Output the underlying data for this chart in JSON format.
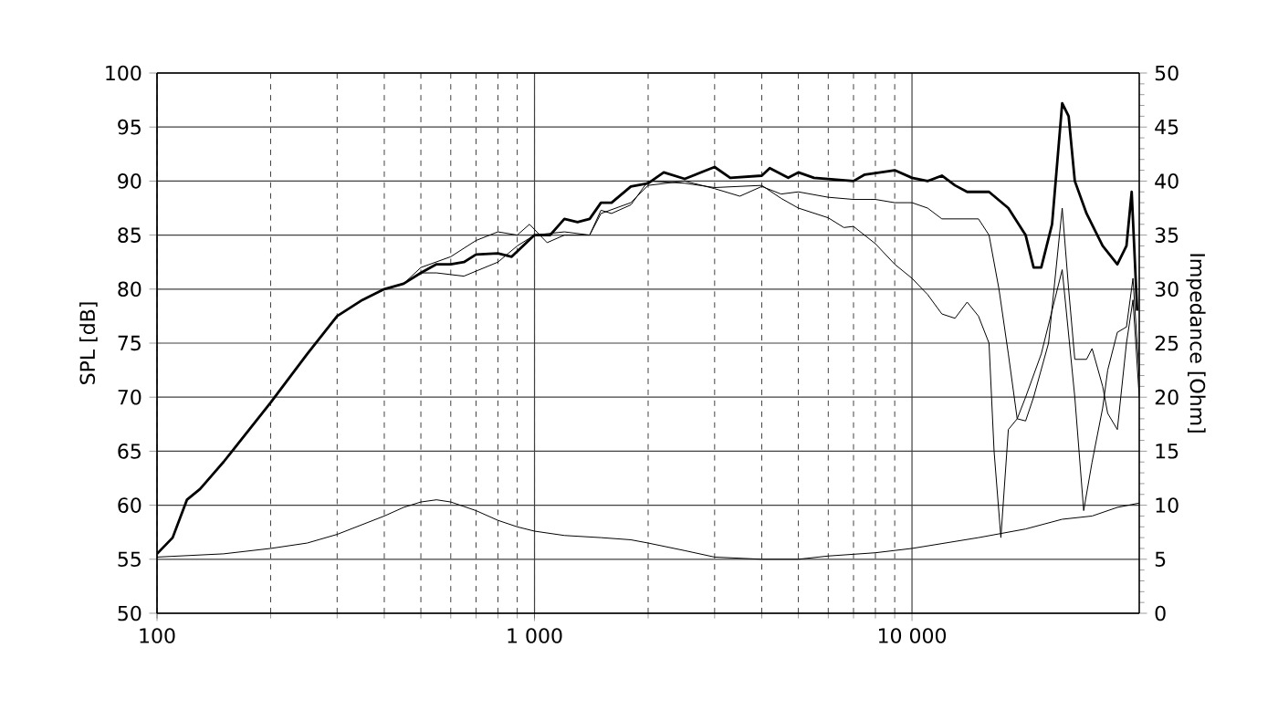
{
  "chart_data": {
    "type": "line",
    "ylabel": "SPL [dB]",
    "y2label": "Impedance [Ohm]",
    "log": "x",
    "grid": true,
    "marker": "none",
    "line_style": "solid",
    "xlim": [
      100,
      40000
    ],
    "xticks": [
      100,
      {
        "value": 1000,
        "label": "1 000"
      },
      {
        "value": 10000,
        "label": "10 000"
      }
    ],
    "ylim": [
      50,
      100
    ],
    "yticks": [
      50,
      55,
      60,
      65,
      70,
      75,
      80,
      85,
      90,
      95,
      100
    ],
    "y2lim": [
      0,
      50
    ],
    "y2ticks": [
      0,
      5,
      10,
      15,
      20,
      25,
      30,
      35,
      40,
      45,
      50
    ],
    "series": [
      {
        "color": "#000000",
        "x": [
          100,
          110,
          120,
          130,
          150,
          200,
          250,
          300,
          350,
          400,
          450,
          500,
          550,
          600,
          650,
          700,
          800,
          870,
          1000,
          1100,
          1200,
          1300,
          1400,
          1500,
          1600,
          1800,
          2000,
          2200,
          2500,
          3000,
          3300,
          4000,
          4200,
          4700,
          5000,
          5500,
          6000,
          7000,
          7500,
          9000,
          10000,
          11000,
          12000,
          13000,
          14000,
          16000,
          18000,
          20000,
          21000,
          22000,
          23500,
          25000,
          26000,
          27000,
          29000,
          32000,
          35000,
          37000,
          38200,
          39500
        ],
        "values": [
          55.5,
          57,
          60.5,
          61.5,
          64,
          69.5,
          74,
          77.5,
          79,
          80,
          80.5,
          81.5,
          82.3,
          82.3,
          82.5,
          83.2,
          83.3,
          83,
          85,
          85,
          86.5,
          86.2,
          86.5,
          88,
          88,
          89.5,
          89.8,
          90.8,
          90.2,
          91.3,
          90.3,
          90.5,
          91.2,
          90.3,
          90.8,
          90.3,
          90.2,
          90,
          90.6,
          91,
          90.3,
          90,
          90.5,
          89.6,
          89,
          89,
          87.5,
          85,
          82,
          82,
          86,
          97.2,
          96,
          90,
          87,
          84,
          82.3,
          84,
          89,
          78
        ]
      },
      {
        "color": "#000000",
        "x": [
          100,
          110,
          120,
          130,
          150,
          200,
          250,
          300,
          350,
          400,
          450,
          500,
          600,
          700,
          800,
          900,
          970,
          1080,
          1200,
          1400,
          1500,
          1800,
          2000,
          2500,
          3000,
          3500,
          4000,
          4500,
          5000,
          6000,
          7000,
          8000,
          9000,
          10000,
          11000,
          12000,
          15000,
          16000,
          17000,
          18000,
          19000,
          20000,
          21000,
          23000,
          25000,
          26000,
          27000,
          29000,
          30000,
          32000,
          33000,
          35000,
          37000,
          38500,
          40000
        ],
        "values": [
          55.5,
          57,
          60.5,
          61.5,
          64,
          69.5,
          74,
          77.5,
          79,
          80,
          80.5,
          82,
          83,
          84.5,
          85.3,
          85,
          86,
          84.3,
          85,
          85,
          87,
          88,
          89.6,
          90,
          89.3,
          88.6,
          89.5,
          88.8,
          89,
          88.5,
          88.3,
          88.3,
          88,
          88,
          87.5,
          86.5,
          86.5,
          85,
          80,
          74,
          68,
          67.8,
          70,
          75,
          87.5,
          80,
          73.5,
          73.5,
          74.5,
          71,
          68.5,
          67,
          75,
          79,
          70
        ]
      },
      {
        "color": "#000000",
        "x": [
          100,
          110,
          120,
          130,
          150,
          200,
          250,
          300,
          350,
          400,
          450,
          500,
          550,
          650,
          800,
          900,
          1000,
          1200,
          1400,
          1500,
          1600,
          1800,
          2000,
          2500,
          3000,
          4000,
          4500,
          5000,
          6000,
          6600,
          7000,
          8000,
          9000,
          10000,
          11000,
          12000,
          13000,
          14000,
          15000,
          16000,
          16500,
          17200,
          18000,
          19000,
          20000,
          22000,
          25000,
          27000,
          28500,
          30000,
          32000,
          33000,
          35000,
          37000,
          38500,
          40000
        ],
        "values": [
          55.5,
          57,
          60.5,
          61.5,
          64,
          69.5,
          74,
          77.5,
          79,
          80,
          80.5,
          81.5,
          81.5,
          81.2,
          82.5,
          84,
          85,
          85.3,
          85,
          87.3,
          87,
          87.8,
          90,
          89.8,
          89.4,
          89.6,
          88.4,
          87.5,
          86.6,
          85.7,
          85.8,
          84.2,
          82.3,
          81,
          79.5,
          77.7,
          77.3,
          78.8,
          77.5,
          75,
          65,
          57,
          67,
          68,
          70,
          74,
          81.8,
          70,
          59.5,
          64,
          69,
          72.5,
          76,
          76.5,
          81,
          72
        ]
      },
      {
        "color": "#000000",
        "axis": "y2",
        "x": [
          100,
          150,
          200,
          250,
          300,
          400,
          450,
          500,
          550,
          600,
          700,
          800,
          900,
          1000,
          1200,
          1500,
          1800,
          2000,
          2500,
          3000,
          4000,
          5000,
          6000,
          8000,
          10000,
          15000,
          20000,
          25000,
          30000,
          35000,
          40000
        ],
        "values": [
          5.2,
          5.5,
          6.0,
          6.5,
          7.3,
          9.0,
          9.8,
          10.3,
          10.5,
          10.3,
          9.5,
          8.6,
          8.0,
          7.6,
          7.2,
          7.0,
          6.8,
          6.5,
          5.8,
          5.2,
          5.0,
          5.0,
          5.3,
          5.6,
          6.0,
          7.0,
          7.8,
          8.7,
          9.0,
          9.8,
          10.2
        ]
      }
    ]
  }
}
